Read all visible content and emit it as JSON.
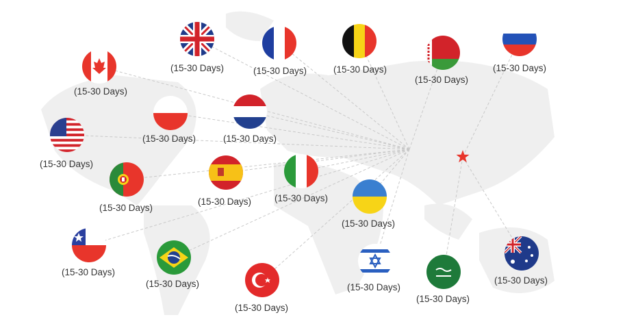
{
  "accent_color": "#e8352b",
  "hub_icon": "star-icon",
  "flags": [
    {
      "icon": "flag-canada-icon",
      "label": "(15-30 Days)"
    },
    {
      "icon": "flag-uk-icon",
      "label": "(15-30 Days)"
    },
    {
      "icon": "flag-france-icon",
      "label": "(15-30 Days)"
    },
    {
      "icon": "flag-belgium-icon",
      "label": "(15-30 Days)"
    },
    {
      "icon": "flag-belarus-icon",
      "label": "(15-30 Days)"
    },
    {
      "icon": "flag-russia-icon",
      "label": "(15-30 Days)"
    },
    {
      "icon": "flag-poland-icon",
      "label": "(15-30 Days)"
    },
    {
      "icon": "flag-netherlands-icon",
      "label": "(15-30 Days)"
    },
    {
      "icon": "flag-usa-icon",
      "label": "(15-30 Days)"
    },
    {
      "icon": "flag-portugal-icon",
      "label": "(15-30 Days)"
    },
    {
      "icon": "flag-spain-icon",
      "label": "(15-30 Days)"
    },
    {
      "icon": "flag-italy-icon",
      "label": "(15-30 Days)"
    },
    {
      "icon": "flag-ukraine-icon",
      "label": "(15-30 Days)"
    },
    {
      "icon": "flag-chile-icon",
      "label": "(15-30 Days)"
    },
    {
      "icon": "flag-brazil-icon",
      "label": "(15-30 Days)"
    },
    {
      "icon": "flag-turkey-icon",
      "label": "(15-30 Days)"
    },
    {
      "icon": "flag-israel-icon",
      "label": "(15-30 Days)"
    },
    {
      "icon": "flag-saudi-arabia-icon",
      "label": "(15-30 Days)"
    },
    {
      "icon": "flag-australia-icon",
      "label": "(15-30 Days)"
    }
  ]
}
